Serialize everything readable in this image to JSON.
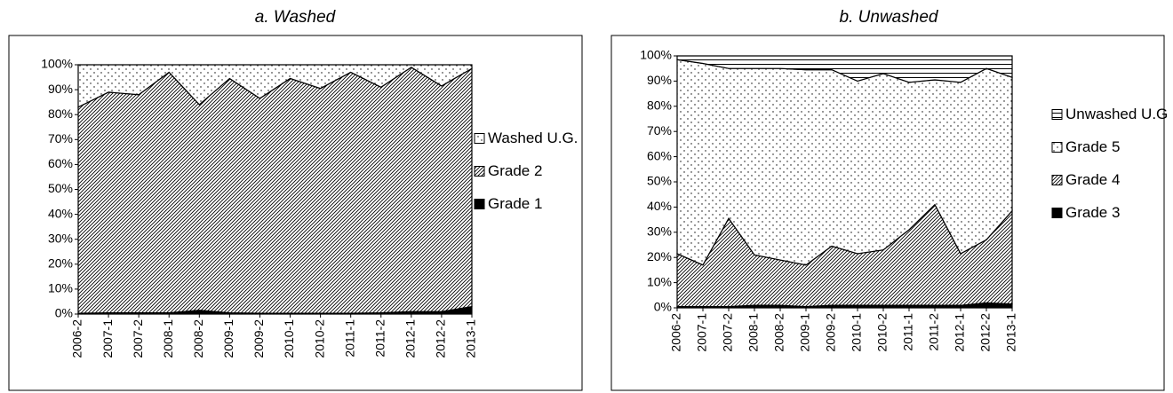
{
  "chart_data": [
    {
      "type": "stacked-area",
      "title": "a. Washed",
      "categories": [
        "2006-2",
        "2007-1",
        "2007-2",
        "2008-1",
        "2008-2",
        "2009-1",
        "2009-2",
        "2010-1",
        "2010-2",
        "2011-1",
        "2011-2",
        "2012-1",
        "2012-2",
        "2013-1"
      ],
      "ylim": [
        0,
        100
      ],
      "yticks": [
        {
          "value": 0,
          "label": "0%"
        },
        {
          "value": 10,
          "label": "10%"
        },
        {
          "value": 20,
          "label": "20%"
        },
        {
          "value": 30,
          "label": "30%"
        },
        {
          "value": 40,
          "label": "40%"
        },
        {
          "value": 50,
          "label": "50%"
        },
        {
          "value": 60,
          "label": "60%"
        },
        {
          "value": 70,
          "label": "70%"
        },
        {
          "value": 80,
          "label": "80%"
        },
        {
          "value": 90,
          "label": "90%"
        },
        {
          "value": 100,
          "label": "100%"
        }
      ],
      "series": [
        {
          "name": "Grade 1",
          "color": "#000000",
          "pattern": "solid",
          "values": [
            0.3,
            0.5,
            0.5,
            0.5,
            1.5,
            0.5,
            0.3,
            0.3,
            0.3,
            0.3,
            0.5,
            1,
            1,
            3
          ]
        },
        {
          "name": "Grade 2",
          "color": "#000000",
          "pattern": "hatch",
          "values": [
            82.7,
            88.5,
            87.5,
            96.5,
            82.5,
            94,
            86.2,
            94.2,
            90.2,
            96.7,
            90.5,
            98,
            90.5,
            95.5
          ]
        },
        {
          "name": "Washed U.G.",
          "color": "#000000",
          "pattern": "dots",
          "values": [
            17,
            11,
            12,
            3,
            16,
            5.5,
            13.5,
            5.5,
            9.5,
            3,
            9,
            1,
            8.5,
            1.5
          ]
        }
      ]
    },
    {
      "type": "stacked-area",
      "title": "b. Unwashed",
      "categories": [
        "2006-2",
        "2007-1",
        "2007-2",
        "2008-1",
        "2008-2",
        "2009-1",
        "2009-2",
        "2010-1",
        "2010-2",
        "2011-1",
        "2011-2",
        "2012-1",
        "2012-2",
        "2013-1"
      ],
      "ylim": [
        0,
        100
      ],
      "yticks": [
        {
          "value": 0,
          "label": "0%"
        },
        {
          "value": 10,
          "label": "10%"
        },
        {
          "value": 20,
          "label": "20%"
        },
        {
          "value": 30,
          "label": "30%"
        },
        {
          "value": 40,
          "label": "40%"
        },
        {
          "value": 50,
          "label": "50%"
        },
        {
          "value": 60,
          "label": "60%"
        },
        {
          "value": 70,
          "label": "70%"
        },
        {
          "value": 80,
          "label": "80%"
        },
        {
          "value": 90,
          "label": "90%"
        },
        {
          "value": 100,
          "label": "100%"
        }
      ],
      "series": [
        {
          "name": "Grade 3",
          "color": "#000000",
          "pattern": "solid",
          "values": [
            0.5,
            0.5,
            0.5,
            1,
            1,
            0.5,
            1,
            1,
            1,
            1,
            1,
            1,
            2,
            1.5
          ]
        },
        {
          "name": "Grade 4",
          "color": "#000000",
          "pattern": "hatch",
          "values": [
            21,
            16.5,
            35,
            20,
            18,
            16.5,
            23.5,
            20.5,
            22,
            30,
            40,
            20.5,
            25,
            37
          ]
        },
        {
          "name": "Grade 5",
          "color": "#000000",
          "pattern": "dots",
          "values": [
            77,
            80,
            59.5,
            74,
            76,
            77.5,
            70,
            68.5,
            70,
            58.5,
            49.5,
            68,
            68,
            53
          ]
        },
        {
          "name": "Unwashed U.G",
          "color": "#000000",
          "pattern": "hlines",
          "values": [
            1.5,
            3,
            5,
            5,
            5,
            5.5,
            5.5,
            10,
            7,
            10.5,
            9.5,
            10.5,
            5,
            8.5
          ]
        }
      ]
    }
  ]
}
